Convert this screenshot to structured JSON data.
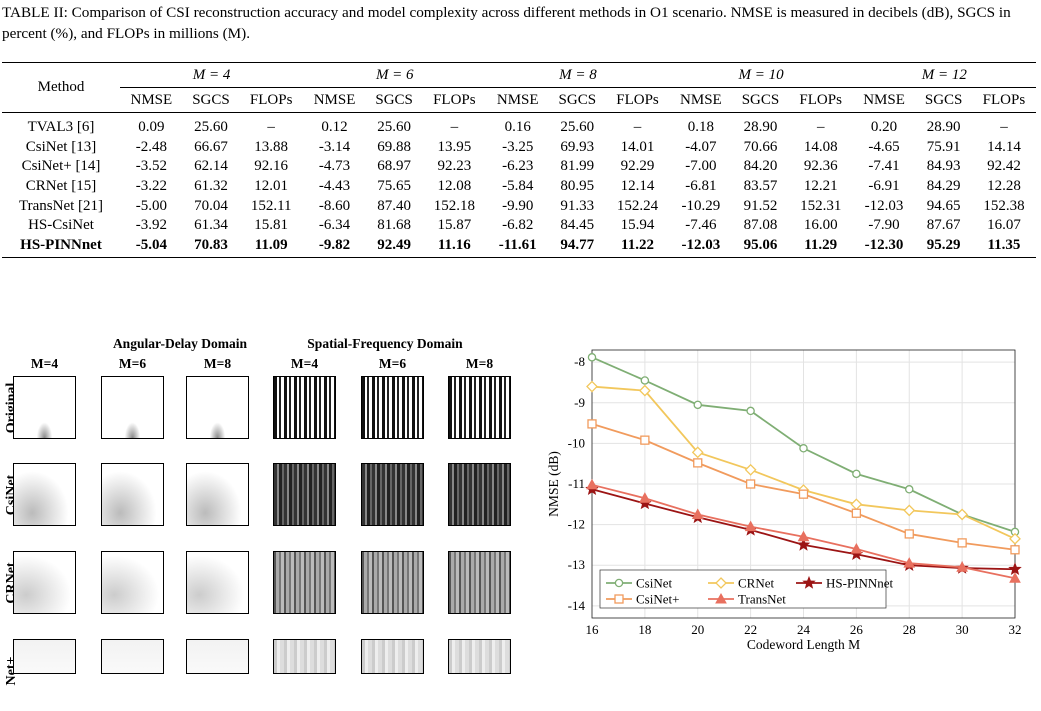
{
  "caption": "TABLE II: Comparison of CSI reconstruction accuracy and model complexity across different methods in O1 scenario. NMSE is measured in decibels (dB), SGCS in percent (%), and FLOPs in millions (M).",
  "table": {
    "method_header": "Method",
    "groups": [
      "M = 4",
      "M = 6",
      "M = 8",
      "M = 10",
      "M = 12"
    ],
    "subheaders": [
      "NMSE",
      "SGCS",
      "FLOPs"
    ],
    "rows": [
      {
        "method": "TVAL3 [6]",
        "values": [
          "0.09",
          "25.60",
          "–",
          "0.12",
          "25.60",
          "–",
          "0.16",
          "25.60",
          "–",
          "0.18",
          "28.90",
          "–",
          "0.20",
          "28.90",
          "–"
        ]
      },
      {
        "method": "CsiNet [13]",
        "values": [
          "-2.48",
          "66.67",
          "13.88",
          "-3.14",
          "69.88",
          "13.95",
          "-3.25",
          "69.93",
          "14.01",
          "-4.07",
          "70.66",
          "14.08",
          "-4.65",
          "75.91",
          "14.14"
        ]
      },
      {
        "method": "CsiNet+ [14]",
        "values": [
          "-3.52",
          "62.14",
          "92.16",
          "-4.73",
          "68.97",
          "92.23",
          "-6.23",
          "81.99",
          "92.29",
          "-7.00",
          "84.20",
          "92.36",
          "-7.41",
          "84.93",
          "92.42"
        ]
      },
      {
        "method": "CRNet [15]",
        "values": [
          "-3.22",
          "61.32",
          "12.01",
          "-4.43",
          "75.65",
          "12.08",
          "-5.84",
          "80.95",
          "12.14",
          "-6.81",
          "83.57",
          "12.21",
          "-6.91",
          "84.29",
          "12.28"
        ]
      },
      {
        "method": "TransNet [21]",
        "values": [
          "-5.00",
          "70.04",
          "152.11",
          "-8.60",
          "87.40",
          "152.18",
          "-9.90",
          "91.33",
          "152.24",
          "-10.29",
          "91.52",
          "152.31",
          "-12.03",
          "94.65",
          "152.38"
        ]
      },
      {
        "method": "HS-CsiNet",
        "values": [
          "-3.92",
          "61.34",
          "15.81",
          "-6.34",
          "81.68",
          "15.87",
          "-6.82",
          "84.45",
          "15.94",
          "-7.46",
          "87.08",
          "16.00",
          "-7.90",
          "87.67",
          "16.07"
        ]
      },
      {
        "method": "HS-PINNnet",
        "values": [
          "-5.04",
          "70.83",
          "11.09",
          "-9.82",
          "92.49",
          "11.16",
          "-11.61",
          "94.77",
          "11.22",
          "-12.03",
          "95.06",
          "11.29",
          "-12.30",
          "95.29",
          "11.35"
        ],
        "best": true
      }
    ]
  },
  "figure": {
    "domain_titles": [
      "Angular-Delay Domain",
      "Spatial-Frequency Domain"
    ],
    "column_labels": [
      "M=4",
      "M=6",
      "M=8",
      "M=4",
      "M=6",
      "M=8"
    ],
    "row_labels": [
      "Original",
      "CsiNet",
      "CRNet",
      "Net+"
    ]
  },
  "chart_data": {
    "type": "line",
    "xlabel": "Codeword Length M",
    "ylabel": "NMSE (dB)",
    "x": [
      16,
      18,
      20,
      22,
      24,
      26,
      28,
      30,
      32
    ],
    "xlim": [
      16,
      32
    ],
    "ylim": [
      -14.3,
      -7.7
    ],
    "xticks": [
      "16",
      "18",
      "20",
      "22",
      "24",
      "26",
      "28",
      "30",
      "32"
    ],
    "yticks": [
      "-8",
      "-9",
      "-10",
      "-11",
      "-12",
      "-13",
      "-14"
    ],
    "ytick_values": [
      -8,
      -9,
      -10,
      -11,
      -12,
      -13,
      -14
    ],
    "grid": true,
    "legend_position": "bottom-left",
    "series": [
      {
        "name": "CsiNet",
        "color": "#7fae74",
        "marker": "circle",
        "values": [
          -7.88,
          -8.45,
          -9.05,
          -9.2,
          -10.12,
          -10.75,
          -11.13,
          -11.75,
          -12.18
        ]
      },
      {
        "name": "CRNet",
        "color": "#f2c75c",
        "marker": "diamond",
        "values": [
          -8.6,
          -8.7,
          -10.22,
          -10.65,
          -11.15,
          -11.5,
          -11.65,
          -11.75,
          -12.35
        ]
      },
      {
        "name": "HS-PINNnet",
        "color": "#9c1414",
        "marker": "star",
        "values": [
          -11.13,
          -11.48,
          -11.82,
          -12.13,
          -12.5,
          -12.73,
          -13.0,
          -13.07,
          -13.1
        ]
      },
      {
        "name": "CsiNet+",
        "color": "#f19b5d",
        "marker": "square",
        "values": [
          -9.52,
          -9.92,
          -10.48,
          -11.0,
          -11.25,
          -11.72,
          -12.23,
          -12.45,
          -12.62
        ]
      },
      {
        "name": "TransNet",
        "color": "#e8705f",
        "marker": "triangle",
        "values": [
          -11.02,
          -11.35,
          -11.75,
          -12.05,
          -12.3,
          -12.6,
          -12.95,
          -13.05,
          -13.32
        ]
      }
    ]
  }
}
